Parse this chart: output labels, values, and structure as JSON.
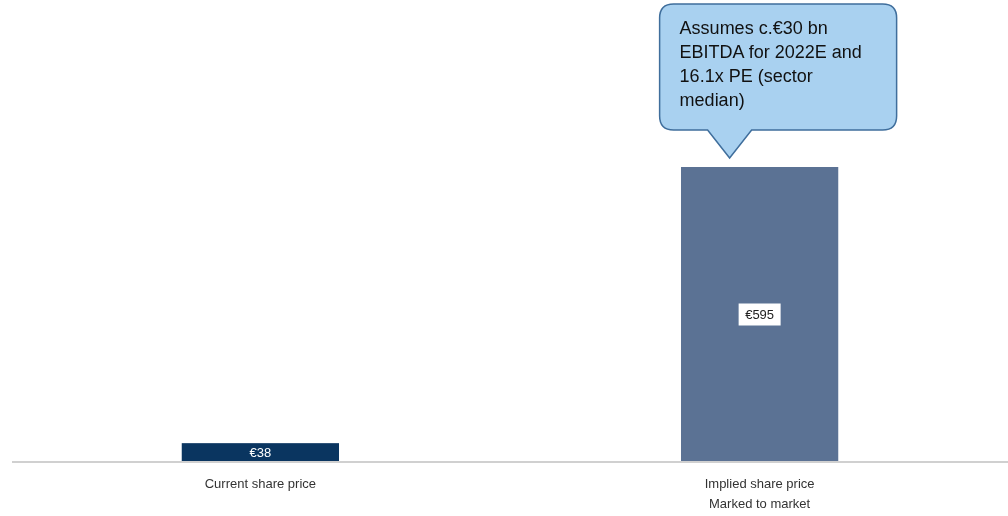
{
  "chart_data": {
    "type": "bar",
    "categories": [
      "Current share price",
      "Implied share price\nMarked to market"
    ],
    "values": [
      38,
      595
    ],
    "colors": [
      "#0a3560",
      "#5b7294"
    ],
    "value_labels": [
      "€38",
      "€595"
    ],
    "annotations": [
      "Assumes c.€30 bn EBITDA for 2022E and 16.1x PE (sector median)"
    ]
  }
}
